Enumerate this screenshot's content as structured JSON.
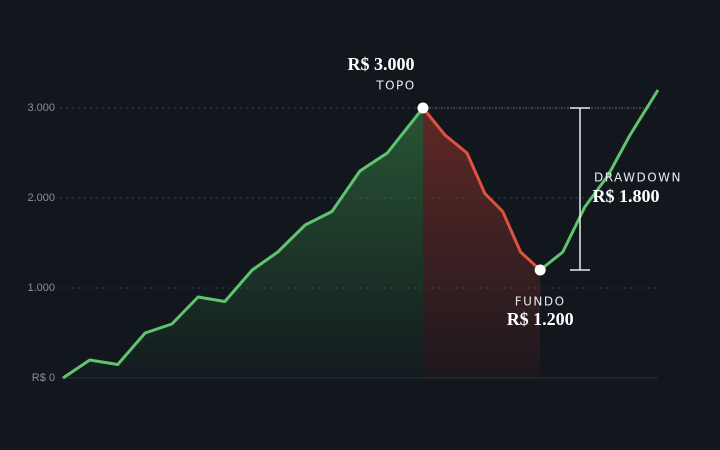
{
  "chart_data": {
    "type": "line",
    "x": [
      0,
      4.5,
      9.2,
      13.8,
      18.3,
      22.7,
      27.2,
      31.8,
      36.1,
      40.7,
      45.2,
      49.9,
      54.5,
      60.5,
      64.2,
      67.9,
      70.9,
      73.9,
      76.9,
      80.2,
      84.0,
      87.7,
      91.6,
      95.3,
      100
    ],
    "series": [
      {
        "color": "#5fc46e",
        "values": [
          0,
          200,
          150,
          500,
          600,
          900,
          850,
          1200,
          1400,
          1700,
          1850,
          2300,
          2500,
          3000,
          null,
          null,
          null,
          null,
          null,
          1200,
          1400,
          1900,
          2250,
          2700,
          3200
        ]
      },
      {
        "color": "#e0523f",
        "values": [
          null,
          null,
          null,
          null,
          null,
          null,
          null,
          null,
          null,
          null,
          null,
          null,
          null,
          3000,
          2700,
          2500,
          2050,
          1850,
          1400,
          1200,
          null,
          null,
          null,
          null,
          null
        ]
      }
    ],
    "xlim": [
      0,
      100
    ],
    "ylim": [
      0,
      3500
    ],
    "yticks": [
      {
        "value": 0,
        "label": "R$ 0"
      },
      {
        "value": 1000,
        "label": "1.000"
      },
      {
        "value": 2000,
        "label": "2.000"
      },
      {
        "value": 3000,
        "label": "3.000"
      }
    ],
    "grid": true,
    "annotations": {
      "peak": {
        "text": "TOPO",
        "x": 60.5,
        "value": 3000,
        "value_label": "R$ 3.000"
      },
      "trough": {
        "text": "FUNDO",
        "x": 80.2,
        "value": 1200,
        "value_label": "R$ 1.200"
      },
      "drawdown": {
        "text": "DRAWDOWN",
        "value": 1800,
        "value_label": "R$ 1.800"
      }
    }
  }
}
